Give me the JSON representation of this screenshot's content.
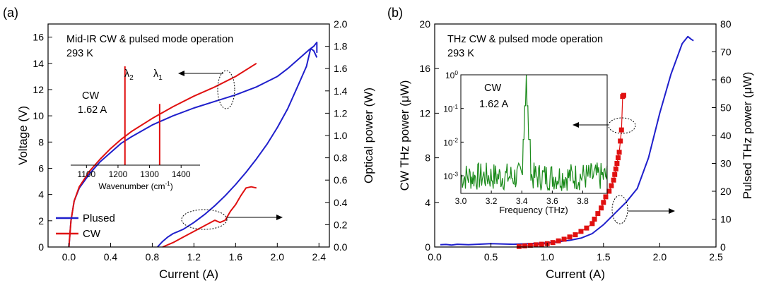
{
  "chart_data": [
    {
      "panel_label": "(a)",
      "type": "line",
      "annotation_lines": [
        "Mid-IR CW & pulsed mode operation",
        "293 K"
      ],
      "xlabel": "Current (A)",
      "ylabel_left": "Voltage (V)",
      "ylabel_right": "Optical power (W)",
      "xlim": [
        -0.2,
        2.5
      ],
      "ylim_left": [
        0,
        17.0
      ],
      "ylim_right": [
        0,
        2.0
      ],
      "x_ticks": [
        "0.0",
        "0.4",
        "0.8",
        "1.2",
        "1.6",
        "2.0",
        "2.4"
      ],
      "y_left_ticks": [
        "0",
        "2",
        "4",
        "6",
        "8",
        "10",
        "12",
        "14",
        "16"
      ],
      "y_right_ticks": [
        "0.0",
        "0.2",
        "0.4",
        "0.6",
        "0.8",
        "1.0",
        "1.2",
        "1.4",
        "1.6",
        "1.8",
        "2.0"
      ],
      "legend_position": "bottom-left",
      "series": [
        {
          "name": "Plused",
          "axis": "left",
          "color": "#1f1fcc",
          "x": [
            0.0,
            0.02,
            0.05,
            0.1,
            0.2,
            0.3,
            0.4,
            0.5,
            0.6,
            0.8,
            1.0,
            1.2,
            1.4,
            1.6,
            1.8,
            2.0,
            2.1,
            2.2,
            2.3,
            2.35,
            2.38,
            2.38
          ],
          "y": [
            0.0,
            2.0,
            3.5,
            4.5,
            5.6,
            6.5,
            7.2,
            7.9,
            8.4,
            9.3,
            10.0,
            10.6,
            11.1,
            11.6,
            12.2,
            13.0,
            13.6,
            14.3,
            15.0,
            15.3,
            15.6,
            14.8
          ]
        },
        {
          "name": "CW",
          "axis": "left",
          "color": "#e01010",
          "x": [
            0.0,
            0.02,
            0.05,
            0.1,
            0.2,
            0.3,
            0.4,
            0.5,
            0.6,
            0.8,
            1.0,
            1.2,
            1.4,
            1.6,
            1.8
          ],
          "y": [
            0.0,
            2.0,
            3.5,
            4.6,
            5.8,
            6.7,
            7.5,
            8.2,
            8.8,
            9.8,
            10.7,
            11.5,
            12.2,
            13.0,
            14.0
          ]
        },
        {
          "name": "",
          "axis": "right",
          "color": "#1f1fcc",
          "x": [
            0.85,
            0.9,
            0.95,
            1.0,
            1.05,
            1.1,
            1.2,
            1.3,
            1.4,
            1.5,
            1.6,
            1.7,
            1.8,
            1.9,
            2.0,
            2.1,
            2.2,
            2.28,
            2.32,
            2.35,
            2.38
          ],
          "y": [
            0.0,
            0.05,
            0.09,
            0.12,
            0.14,
            0.16,
            0.22,
            0.29,
            0.37,
            0.46,
            0.56,
            0.67,
            0.79,
            0.92,
            1.07,
            1.24,
            1.45,
            1.62,
            1.78,
            1.76,
            1.7
          ]
        },
        {
          "name": "",
          "axis": "right",
          "color": "#e01010",
          "x": [
            0.9,
            1.0,
            1.1,
            1.2,
            1.3,
            1.4,
            1.45,
            1.5,
            1.55,
            1.6,
            1.65,
            1.7,
            1.75,
            1.8
          ],
          "y": [
            0.0,
            0.04,
            0.09,
            0.14,
            0.19,
            0.24,
            0.22,
            0.24,
            0.32,
            0.38,
            0.46,
            0.53,
            0.54,
            0.53
          ]
        }
      ],
      "inset": {
        "annotation_lines": [
          "CW",
          "1.62 A"
        ],
        "peak_labels": [
          "λ2",
          "λ1"
        ],
        "xlabel": "Wavenumber (cm-1)",
        "xlim": [
          1050,
          1460
        ],
        "x_ticks": [
          "1100",
          "1200",
          "1300",
          "1400"
        ],
        "ylim": [
          0,
          1
        ],
        "color": "#e01010",
        "peaks": [
          {
            "x": 1222,
            "height": 1.0
          },
          {
            "x": 1332,
            "height": 0.62
          }
        ]
      }
    },
    {
      "panel_label": "(b)",
      "type": "line",
      "annotation_lines": [
        "THz CW & pulsed mode operation",
        "293 K"
      ],
      "xlabel": "Current (A)",
      "ylabel_left": "CW THz power (μW)",
      "ylabel_right": "Pulsed THz power (μW)",
      "xlim": [
        0,
        2.5
      ],
      "ylim_left": [
        0,
        20
      ],
      "ylim_right": [
        0,
        80
      ],
      "x_ticks": [
        "0.0",
        "0.5",
        "1.0",
        "1.5",
        "2.0",
        "2.5"
      ],
      "y_left_ticks": [
        "0",
        "4",
        "8",
        "12",
        "16",
        "20"
      ],
      "y_right_ticks": [
        "0",
        "10",
        "20",
        "30",
        "40",
        "50",
        "60",
        "70",
        "80"
      ],
      "series": [
        {
          "name": "",
          "axis": "right",
          "color": "#1f1fcc",
          "x": [
            0.05,
            0.1,
            0.15,
            0.2,
            0.3,
            0.5,
            0.7,
            0.9,
            1.0,
            1.1,
            1.2,
            1.3,
            1.4,
            1.5,
            1.6,
            1.7,
            1.8,
            1.9,
            2.0,
            2.1,
            2.2,
            2.25,
            2.28,
            2.3
          ],
          "y": [
            0.8,
            0.9,
            0.7,
            1.0,
            0.8,
            1.2,
            1.0,
            1.3,
            1.5,
            1.9,
            2.4,
            3.2,
            4.8,
            8.0,
            12.0,
            16.0,
            21.0,
            32.0,
            48.0,
            62.0,
            73.0,
            75.5,
            74.5,
            74.0
          ]
        },
        {
          "name": "",
          "axis": "left",
          "color": "#e01010",
          "marker": "square",
          "x": [
            0.75,
            0.8,
            0.85,
            0.9,
            0.95,
            1.0,
            1.05,
            1.1,
            1.15,
            1.2,
            1.25,
            1.3,
            1.35,
            1.4,
            1.42,
            1.45,
            1.48,
            1.5,
            1.52,
            1.55,
            1.57,
            1.59,
            1.6,
            1.61,
            1.62,
            1.63,
            1.64,
            1.65,
            1.66,
            1.67,
            1.68
          ],
          "y": [
            0.05,
            0.1,
            0.15,
            0.2,
            0.25,
            0.3,
            0.4,
            0.55,
            0.7,
            0.9,
            1.1,
            1.4,
            1.7,
            2.1,
            2.5,
            3.0,
            3.5,
            4.0,
            4.5,
            5.0,
            5.5,
            6.0,
            6.5,
            7.0,
            7.5,
            8.0,
            8.5,
            9.5,
            10.5,
            13.5,
            13.6
          ]
        }
      ],
      "inset": {
        "annotation_lines": [
          "CW",
          "1.62 A"
        ],
        "xlabel": "Frequency (THz)",
        "xlim": [
          3.0,
          3.96
        ],
        "x_ticks": [
          "3.0",
          "3.2",
          "3.4",
          "3.6",
          "3.8"
        ],
        "y_ticks": [
          "10-3",
          "10-2",
          "10-1",
          "100"
        ],
        "y_scale": "log",
        "ylim": [
          0.0003,
          1.0
        ],
        "color": "#1a8a1a",
        "peak": {
          "x": 3.43,
          "height": 1.0
        }
      }
    }
  ]
}
